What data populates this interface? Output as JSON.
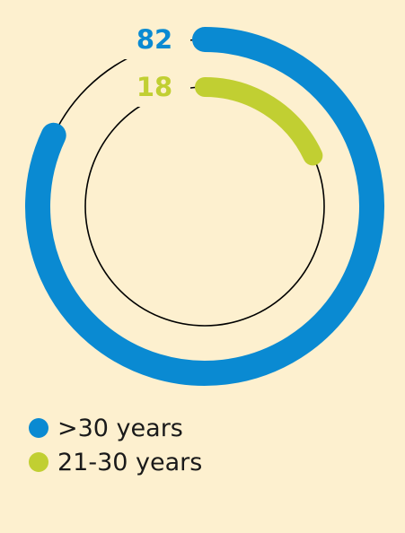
{
  "chart_data": {
    "type": "donut",
    "title": "",
    "series": [
      {
        "name": ">30 years",
        "value": 82,
        "color": "#0a8ad2"
      },
      {
        "name": "21-30 years",
        "value": 18,
        "color": "#c1cf32"
      }
    ],
    "total": 100,
    "legend_position": "bottom-left",
    "track_color": "#000000"
  }
}
